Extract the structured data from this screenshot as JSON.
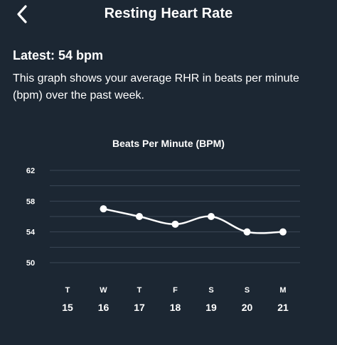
{
  "header": {
    "title": "Resting Heart Rate",
    "back_icon": "chevron-left-icon"
  },
  "summary": {
    "latest": "Latest: 54 bpm",
    "description": "This graph shows your average RHR in beats per minute (bpm) over the past week."
  },
  "colors": {
    "background": "#1c2733",
    "grid": "#3a4756",
    "line": "#ffffff"
  },
  "chart_data": {
    "type": "line",
    "title": "Beats Per Minute (BPM)",
    "xlabel": "",
    "ylabel": "",
    "ylim": [
      50,
      62
    ],
    "y_ticks": [
      "62",
      "58",
      "54",
      "50"
    ],
    "y_tick_values": [
      62,
      58,
      54,
      50
    ],
    "grid_values": [
      62,
      60,
      58,
      56,
      54,
      52,
      50
    ],
    "grid": true,
    "categories": [
      {
        "weekday": "T",
        "date": "15"
      },
      {
        "weekday": "W",
        "date": "16"
      },
      {
        "weekday": "T",
        "date": "17"
      },
      {
        "weekday": "F",
        "date": "18"
      },
      {
        "weekday": "S",
        "date": "19"
      },
      {
        "weekday": "S",
        "date": "20"
      },
      {
        "weekday": "M",
        "date": "21"
      }
    ],
    "values": [
      null,
      57,
      56,
      55,
      56,
      54,
      54
    ]
  }
}
